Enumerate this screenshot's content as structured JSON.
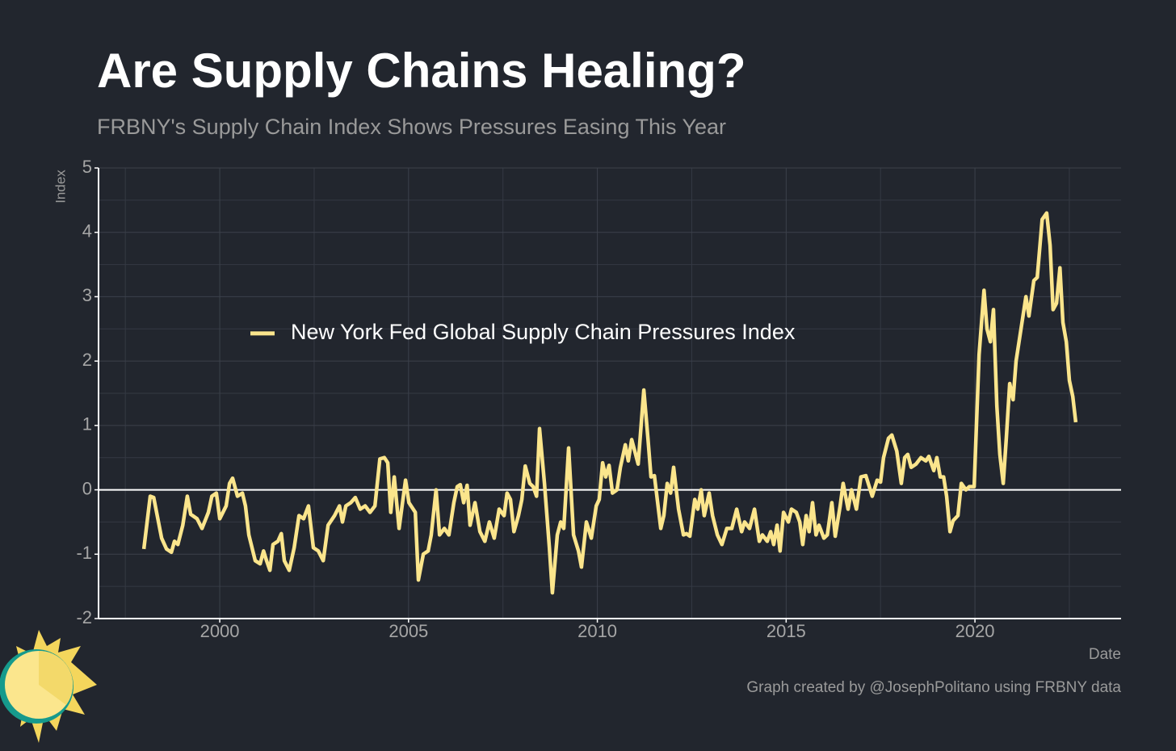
{
  "chart_data": {
    "type": "line",
    "title": "Are Supply Chains Healing?",
    "subtitle": "FRBNY's Supply Chain Index Shows Pressures Easing This Year",
    "y_label": "Index",
    "x_label": "Date",
    "caption": "Graph created by @JosephPolitano using FRBNY data",
    "xlim": [
      1996.79,
      2023.87
    ],
    "ylim": [
      -2,
      5
    ],
    "xticks": [
      2000,
      2005,
      2010,
      2015,
      2020
    ],
    "yticks": [
      -2,
      -1,
      0,
      1,
      2,
      3,
      4,
      5
    ],
    "x_minor_ticks": [
      1997.5,
      2002.5,
      2007.5,
      2012.5,
      2017.5,
      2022.5
    ],
    "y_minor_ticks": [
      -1.5,
      -0.5,
      0.5,
      1.5,
      2.5,
      3.5,
      4.5
    ],
    "hline": 0,
    "grid": true,
    "legend": "center left",
    "x": [
      1997.99,
      1998.16,
      1998.25,
      1998.46,
      1998.59,
      1998.72,
      1998.8,
      1998.89,
      1999.02,
      1999.14,
      1999.23,
      1999.4,
      1999.53,
      1999.7,
      1999.79,
      1999.91,
      2000.0,
      2000.17,
      2000.26,
      2000.34,
      2000.47,
      2000.6,
      2000.68,
      2000.77,
      2000.94,
      2001.07,
      2001.16,
      2001.24,
      2001.33,
      2001.41,
      2001.54,
      2001.63,
      2001.71,
      2001.84,
      2001.97,
      2002.1,
      2002.22,
      2002.35,
      2002.48,
      2002.61,
      2002.74,
      2002.87,
      2003.04,
      2003.17,
      2003.25,
      2003.34,
      2003.47,
      2003.59,
      2003.72,
      2003.85,
      2003.98,
      2004.11,
      2004.24,
      2004.36,
      2004.45,
      2004.53,
      2004.62,
      2004.75,
      2004.92,
      2005.01,
      2005.18,
      2005.26,
      2005.39,
      2005.52,
      2005.6,
      2005.73,
      2005.82,
      2005.95,
      2006.07,
      2006.2,
      2006.29,
      2006.37,
      2006.46,
      2006.55,
      2006.63,
      2006.76,
      2006.89,
      2007.02,
      2007.14,
      2007.27,
      2007.4,
      2007.53,
      2007.61,
      2007.7,
      2007.79,
      2007.91,
      2008.0,
      2008.09,
      2008.21,
      2008.3,
      2008.39,
      2008.47,
      2008.6,
      2008.73,
      2008.81,
      2008.94,
      2009.03,
      2009.11,
      2009.24,
      2009.37,
      2009.5,
      2009.58,
      2009.71,
      2009.84,
      2009.97,
      2010.05,
      2010.14,
      2010.22,
      2010.31,
      2010.4,
      2010.52,
      2010.61,
      2010.74,
      2010.82,
      2010.91,
      2010.99,
      2011.08,
      2011.23,
      2011.34,
      2011.42,
      2011.51,
      2011.68,
      2011.76,
      2011.85,
      2011.94,
      2012.02,
      2012.15,
      2012.28,
      2012.36,
      2012.45,
      2012.58,
      2012.66,
      2012.75,
      2012.83,
      2012.96,
      2013.05,
      2013.18,
      2013.3,
      2013.43,
      2013.56,
      2013.69,
      2013.82,
      2013.9,
      2014.03,
      2014.16,
      2014.29,
      2014.37,
      2014.5,
      2014.59,
      2014.67,
      2014.76,
      2014.84,
      2014.93,
      2015.06,
      2015.14,
      2015.27,
      2015.36,
      2015.44,
      2015.53,
      2015.61,
      2015.7,
      2015.79,
      2015.87,
      2016.0,
      2016.09,
      2016.21,
      2016.3,
      2016.43,
      2016.51,
      2016.64,
      2016.73,
      2016.86,
      2016.98,
      2017.11,
      2017.28,
      2017.41,
      2017.5,
      2017.58,
      2017.71,
      2017.8,
      2017.93,
      2018.05,
      2018.14,
      2018.22,
      2018.31,
      2018.44,
      2018.57,
      2018.7,
      2018.78,
      2018.91,
      2018.99,
      2019.08,
      2019.17,
      2019.25,
      2019.34,
      2019.42,
      2019.55,
      2019.64,
      2019.76,
      2019.85,
      2019.98,
      2020.11,
      2020.24,
      2020.32,
      2020.41,
      2020.49,
      2020.58,
      2020.66,
      2020.75,
      2020.83,
      2020.92,
      2021.01,
      2021.09,
      2021.22,
      2021.35,
      2021.43,
      2021.56,
      2021.65,
      2021.78,
      2021.9,
      2021.99,
      2022.07,
      2022.16,
      2022.25,
      2022.33,
      2022.42,
      2022.5,
      2022.59,
      2022.67
    ],
    "series": [
      {
        "name": "New York Fed Global Supply Chain Pressures Index",
        "color": "#fbe58c",
        "values": [
          -0.92,
          -0.1,
          -0.12,
          -0.75,
          -0.92,
          -0.97,
          -0.8,
          -0.85,
          -0.55,
          -0.1,
          -0.38,
          -0.45,
          -0.6,
          -0.35,
          -0.1,
          -0.05,
          -0.45,
          -0.25,
          0.1,
          0.18,
          -0.1,
          -0.05,
          -0.25,
          -0.7,
          -1.1,
          -1.15,
          -0.95,
          -1.1,
          -1.25,
          -0.85,
          -0.8,
          -0.68,
          -1.1,
          -1.25,
          -0.9,
          -0.4,
          -0.45,
          -0.25,
          -0.9,
          -0.95,
          -1.1,
          -0.55,
          -0.4,
          -0.25,
          -0.5,
          -0.25,
          -0.2,
          -0.12,
          -0.3,
          -0.25,
          -0.35,
          -0.25,
          0.48,
          0.5,
          0.42,
          -0.35,
          0.2,
          -0.6,
          0.15,
          -0.2,
          -0.35,
          -1.4,
          -1.0,
          -0.95,
          -0.7,
          0.0,
          -0.7,
          -0.6,
          -0.7,
          -0.2,
          0.05,
          0.08,
          -0.2,
          0.07,
          -0.55,
          -0.2,
          -0.65,
          -0.8,
          -0.5,
          -0.75,
          -0.3,
          -0.4,
          -0.05,
          -0.15,
          -0.65,
          -0.4,
          -0.15,
          0.37,
          0.1,
          0.05,
          -0.1,
          0.95,
          0.1,
          -0.9,
          -1.6,
          -0.7,
          -0.5,
          -0.6,
          0.65,
          -0.7,
          -0.95,
          -1.2,
          -0.5,
          -0.75,
          -0.25,
          -0.15,
          0.42,
          0.2,
          0.38,
          -0.05,
          0.0,
          0.35,
          0.7,
          0.45,
          0.78,
          0.6,
          0.4,
          1.55,
          0.8,
          0.2,
          0.22,
          -0.6,
          -0.4,
          0.1,
          -0.05,
          0.35,
          -0.3,
          -0.7,
          -0.68,
          -0.72,
          -0.15,
          -0.3,
          0.0,
          -0.4,
          -0.05,
          -0.4,
          -0.7,
          -0.85,
          -0.6,
          -0.6,
          -0.3,
          -0.65,
          -0.5,
          -0.6,
          -0.3,
          -0.8,
          -0.7,
          -0.8,
          -0.65,
          -0.85,
          -0.55,
          -0.95,
          -0.35,
          -0.5,
          -0.3,
          -0.35,
          -0.5,
          -0.85,
          -0.4,
          -0.65,
          -0.2,
          -0.7,
          -0.55,
          -0.75,
          -0.7,
          -0.2,
          -0.72,
          -0.25,
          0.1,
          -0.3,
          0.0,
          -0.3,
          0.2,
          0.22,
          -0.1,
          0.15,
          0.12,
          0.5,
          0.8,
          0.85,
          0.6,
          0.1,
          0.5,
          0.55,
          0.35,
          0.4,
          0.5,
          0.45,
          0.52,
          0.3,
          0.5,
          0.2,
          0.2,
          -0.1,
          -0.65,
          -0.48,
          -0.4,
          0.1,
          0.0,
          0.05,
          0.05,
          2.1,
          3.1,
          2.5,
          2.3,
          2.8,
          1.3,
          0.55,
          0.1,
          0.8,
          1.65,
          1.4,
          2.0,
          2.5,
          3.0,
          2.7,
          3.25,
          3.3,
          4.2,
          4.3,
          3.8,
          2.8,
          2.9,
          3.45,
          2.6,
          2.3,
          1.7,
          1.45,
          1.05
        ]
      }
    ]
  }
}
